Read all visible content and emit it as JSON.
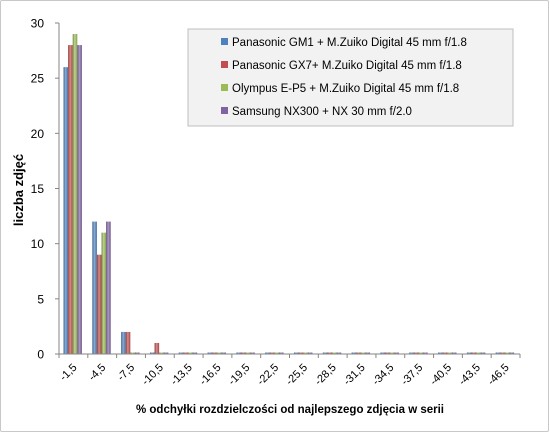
{
  "chart_data": {
    "type": "bar",
    "title": "",
    "xlabel": "% odchyłki rozdzielczości od najlepszego zdjęcia w serii",
    "ylabel": "liczba zdjęć",
    "ylim": [
      0,
      30
    ],
    "yticks": [
      0,
      5,
      10,
      15,
      20,
      25,
      30
    ],
    "grid": false,
    "legend_position": "top-right",
    "categories": [
      "-1,5",
      "-4,5",
      "-7,5",
      "-10,5",
      "-13,5",
      "-16,5",
      "-19,5",
      "-22,5",
      "-25,5",
      "-28,5",
      "-31,5",
      "-34,5",
      "-37,5",
      "-40,5",
      "-43,5",
      "-46,5"
    ],
    "series": [
      {
        "name": "Panasonic GM1 + M.Zuiko Digital 45 mm f/1.8",
        "color": "#4f81bd",
        "values": [
          26,
          12,
          2,
          0,
          0,
          0,
          0,
          0,
          0,
          0,
          0,
          0,
          0,
          0,
          0,
          0
        ]
      },
      {
        "name": "Panasonic GX7+ M.Zuiko Digital 45 mm f/1.8",
        "color": "#c0504d",
        "values": [
          28,
          9,
          2,
          1,
          0,
          0,
          0,
          0,
          0,
          0,
          0,
          0,
          0,
          0,
          0,
          0
        ]
      },
      {
        "name": "Olympus E-P5 + M.Zuiko Digital 45 mm f/1.8",
        "color": "#9bbb59",
        "values": [
          29,
          11,
          0,
          0,
          0,
          0,
          0,
          0,
          0,
          0,
          0,
          0,
          0,
          0,
          0,
          0
        ]
      },
      {
        "name": "Samsung NX300 + NX 30 mm f/2.0",
        "color": "#8064a2",
        "values": [
          28,
          12,
          0,
          0,
          0,
          0,
          0,
          0,
          0,
          0,
          0,
          0,
          0,
          0,
          0,
          0
        ]
      }
    ]
  }
}
